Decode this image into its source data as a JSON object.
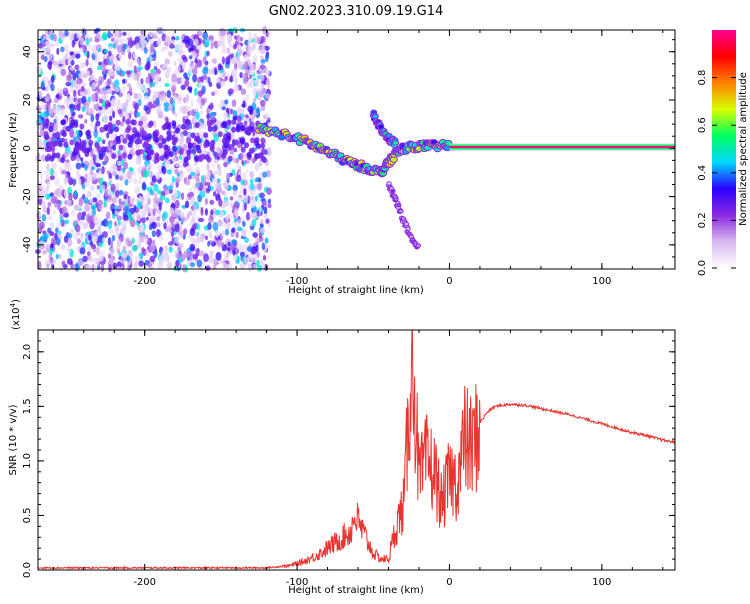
{
  "title": "GN02.2023.310.09.19.G14",
  "chart_data": [
    {
      "type": "heatmap",
      "xlabel": "Height of straight line (km)",
      "ylabel": "Frequency (Hz)",
      "xlim": [
        -270,
        148
      ],
      "ylim": [
        -50,
        49
      ],
      "x_ticks": [
        -200,
        -100,
        0,
        100
      ],
      "y_ticks": [
        -40,
        -20,
        0,
        20,
        40
      ],
      "colorbar": {
        "label": "Normalized spectral amplitude",
        "range": [
          0,
          1
        ],
        "ticks": [
          0.0,
          0.2,
          0.4,
          0.6,
          0.8
        ],
        "colormap": [
          "#ffffff",
          "#d8b8f0",
          "#8a2be2",
          "#2a00ff",
          "#00d8ff",
          "#00ff60",
          "#d8ff00",
          "#ff8000",
          "#ff0000",
          "#ff0090"
        ]
      },
      "features": [
        {
          "name": "noise",
          "x_range": [
            -270,
            -118
          ],
          "freq_range": [
            -50,
            49
          ]
        },
        {
          "name": "signal_track",
          "points": [
            [
              -125,
              8
            ],
            [
              -110,
              6
            ],
            [
              -95,
              3
            ],
            [
              -85,
              0
            ],
            [
              -75,
              -3
            ],
            [
              -65,
              -6
            ],
            [
              -55,
              -8
            ],
            [
              -45,
              -10
            ],
            [
              -40,
              -6
            ],
            [
              -35,
              -2
            ],
            [
              -30,
              0
            ],
            [
              -20,
              1
            ],
            [
              -10,
              1
            ],
            [
              0,
              1
            ]
          ]
        },
        {
          "name": "upper_branch",
          "points": [
            [
              -50,
              14
            ],
            [
              -45,
              8
            ],
            [
              -40,
              4
            ],
            [
              -35,
              2
            ]
          ]
        },
        {
          "name": "lower_branch",
          "points": [
            [
              -40,
              -15
            ],
            [
              -35,
              -22
            ],
            [
              -30,
              -30
            ],
            [
              -25,
              -38
            ],
            [
              -20,
              -42
            ]
          ]
        },
        {
          "name": "steady_line",
          "x_range": [
            0,
            148
          ],
          "freq": 0.5
        }
      ]
    },
    {
      "type": "line",
      "xlabel": "Height of straight line (km)",
      "ylabel": "SNR (10 * v/v)",
      "y_multiplier": "(x10",
      "y_multiplier_exp": "4",
      "xlim": [
        -270,
        148
      ],
      "ylim": [
        0,
        2.2
      ],
      "x_ticks": [
        -200,
        -100,
        0,
        100
      ],
      "y_ticks": [
        0.0,
        0.5,
        1.0,
        1.5,
        2.0
      ],
      "y_tick_labels": [
        "0.0",
        "0.5",
        "1.0",
        "1.5",
        "2.0"
      ],
      "color": "#e8332e",
      "series": [
        {
          "x": [
            -270,
            -240,
            -200,
            -160,
            -120,
            -105,
            -95,
            -85,
            -75,
            -65,
            -62,
            -55,
            -50,
            -45,
            -40,
            -35,
            -30,
            -27,
            -25,
            -22,
            -20,
            -15,
            -10,
            -5,
            0,
            5,
            10,
            15,
            20,
            25,
            30,
            40,
            50,
            60,
            70,
            80,
            90,
            100,
            110,
            120,
            130,
            140,
            148
          ],
          "y": [
            0.02,
            0.02,
            0.02,
            0.02,
            0.02,
            0.04,
            0.08,
            0.15,
            0.25,
            0.35,
            0.5,
            0.3,
            0.15,
            0.1,
            0.1,
            0.4,
            0.6,
            1.3,
            2.2,
            1.4,
            0.8,
            1.0,
            0.9,
            0.6,
            0.85,
            0.8,
            1.2,
            1.1,
            1.35,
            1.45,
            1.5,
            1.52,
            1.51,
            1.48,
            1.45,
            1.42,
            1.38,
            1.34,
            1.3,
            1.26,
            1.23,
            1.19,
            1.17
          ]
        }
      ]
    }
  ]
}
